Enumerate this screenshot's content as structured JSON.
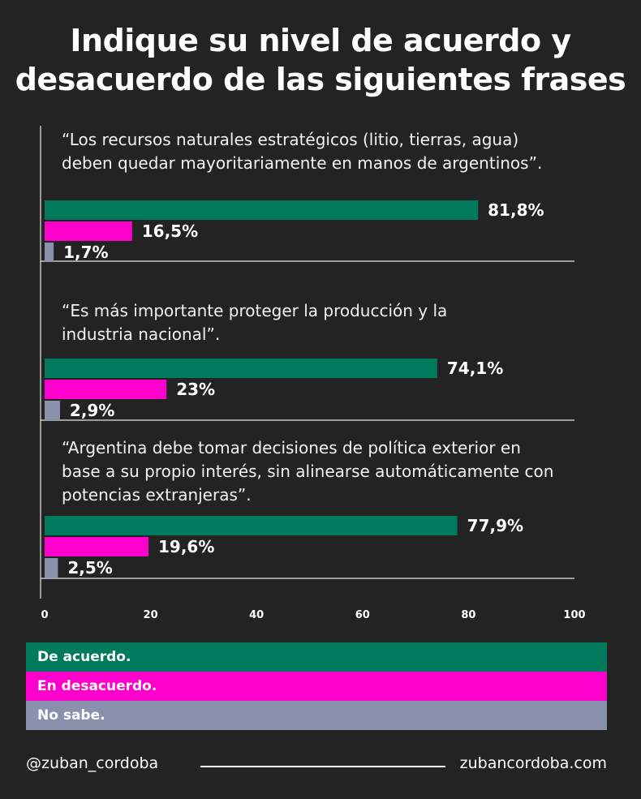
{
  "title_lines": [
    "Indique su nivel de acuerdo y",
    "desacuerdo de las siguientes frases"
  ],
  "chart_data": {
    "type": "bar",
    "orientation": "horizontal",
    "title": "Indique su nivel de acuerdo y desacuerdo de las siguientes frases",
    "categories": [
      "“Los recursos naturales estratégicos (litio, tierras, agua) deben quedar mayoritariamente en manos de argentinos”.",
      "“Es más importante proteger la producción y la industria nacional”.",
      "“Argentina debe tomar decisiones de política exterior en base a su propio interés, sin alinearse automáticamente con potencias extranjeras”."
    ],
    "category_lines": [
      [
        "“Los recursos naturales estratégicos (litio, tierras, agua)",
        "deben quedar mayoritariamente en manos de argentinos”."
      ],
      [
        "“Es más importante proteger la producción y la",
        "industria nacional”."
      ],
      [
        "“Argentina debe tomar decisiones de política exterior en",
        "base a su propio interés, sin alinearse automáticamente con",
        "potencias extranjeras”."
      ]
    ],
    "series": [
      {
        "name": "De acuerdo.",
        "color": "#007A5C",
        "values": [
          81.8,
          74.1,
          77.9
        ],
        "labels": [
          "81,8%",
          "74,1%",
          "77,9%"
        ]
      },
      {
        "name": "En desacuerdo.",
        "color": "#FF00CC",
        "values": [
          16.5,
          23,
          19.6
        ],
        "labels": [
          "16,5%",
          "23%",
          "19,6%"
        ]
      },
      {
        "name": "No sabe.",
        "color": "#8A91AC",
        "values": [
          1.7,
          2.9,
          2.5
        ],
        "labels": [
          "1,7%",
          "2,9%",
          "2,5%"
        ]
      }
    ],
    "xlim": [
      0,
      100
    ],
    "xticks": [
      0,
      20,
      40,
      60,
      80,
      100
    ],
    "legend_position": "bottom"
  },
  "footer": {
    "handle": "@zuban_cordoba",
    "website": "zubancordoba.com"
  }
}
